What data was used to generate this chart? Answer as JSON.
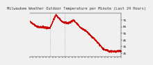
{
  "title": "Milwaukee Weather Outdoor Temperature per Minute (Last 24 Hours)",
  "line_color": "#cc0000",
  "background_color": "#f0f0f0",
  "plot_bg_color": "#f0f0f0",
  "ylim": [
    20,
    85
  ],
  "yticks": [
    25,
    35,
    45,
    55,
    65,
    75
  ],
  "line_style": "--",
  "line_width": 0.6,
  "marker": ".",
  "marker_size": 0.8,
  "vline_positions": [
    0.22,
    0.385
  ],
  "vline_color": "#999999",
  "vline_style": ":",
  "num_points": 1440,
  "title_fontsize": 3.8,
  "tick_fontsize": 3.0,
  "num_xticks": 28
}
